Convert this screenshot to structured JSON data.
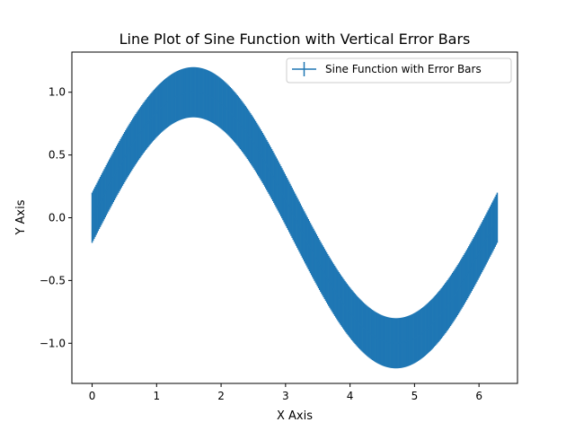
{
  "chart_data": {
    "type": "line",
    "title": "Line Plot of Sine Function with Vertical Error Bars",
    "xlabel": "X Axis",
    "ylabel": "Y Axis",
    "xlim": [
      -0.314,
      6.597
    ],
    "ylim": [
      -1.32,
      1.32
    ],
    "x_ticks": [
      0,
      1,
      2,
      3,
      4,
      5,
      6
    ],
    "x_tick_labels": [
      "0",
      "1",
      "2",
      "3",
      "4",
      "5",
      "6"
    ],
    "y_ticks": [
      -1.0,
      -0.5,
      0.0,
      0.5,
      1.0
    ],
    "y_tick_labels": [
      "−1.0",
      "−0.5",
      "0.0",
      "0.5",
      "1.0"
    ],
    "grid": false,
    "legend_position": "upper right",
    "series": [
      {
        "name": "Sine Function with Error Bars",
        "color": "#1f77b4",
        "function": "sin(x)",
        "x_range": [
          0,
          6.283
        ],
        "num_points": 400,
        "yerr": 0.2
      }
    ]
  }
}
